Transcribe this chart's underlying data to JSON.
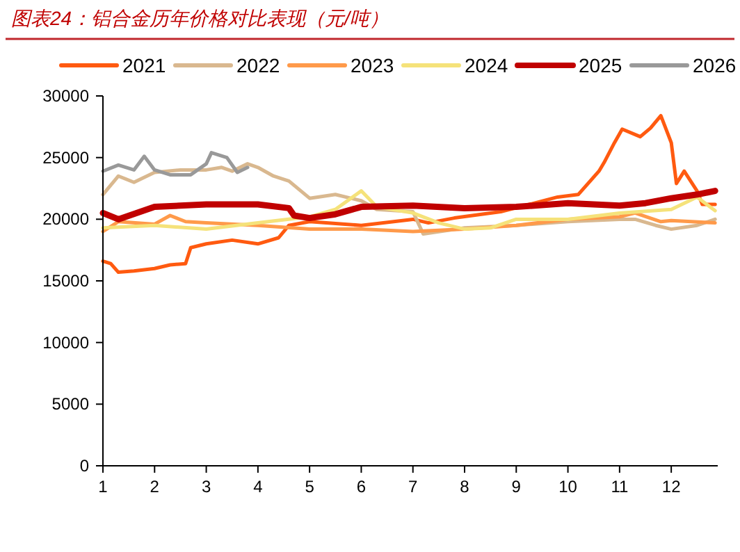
{
  "chart_data": {
    "type": "line",
    "title": "图表24：铝合金历年价格对比表现（元/吨）",
    "xlim": [
      1,
      12.9
    ],
    "xticks": [
      1,
      2,
      3,
      4,
      5,
      6,
      7,
      8,
      9,
      10,
      11,
      12
    ],
    "ylim": [
      0,
      30000
    ],
    "yticks": [
      0,
      5000,
      10000,
      15000,
      20000,
      25000,
      30000
    ],
    "grid": false,
    "legend": "top",
    "marker": "none",
    "line_style": "solid",
    "series": [
      {
        "name": "2021",
        "color": "#ff5a10",
        "x": [
          1,
          1.15,
          1.3,
          1.6,
          2,
          2.3,
          2.6,
          2.7,
          3,
          3.5,
          4,
          4.4,
          4.6,
          5,
          6,
          7,
          7.3,
          7.8,
          8.7,
          9.8,
          10.2,
          10.6,
          10.7,
          10.9,
          11.05,
          11.4,
          11.6,
          11.8,
          12,
          12.1,
          12.25,
          12.5,
          12.6,
          12.85
        ],
        "values": [
          16600,
          16400,
          15700,
          15800,
          16000,
          16300,
          16400,
          17700,
          18000,
          18300,
          18000,
          18500,
          19500,
          19800,
          19500,
          20000,
          19700,
          20100,
          20600,
          21800,
          22000,
          23900,
          24600,
          26200,
          27300,
          26700,
          27400,
          28400,
          26200,
          22900,
          23900,
          22300,
          21200,
          21200
        ]
      },
      {
        "name": "2022",
        "color": "#d9b88f",
        "x": [
          1,
          1.3,
          1.6,
          2,
          2.5,
          3,
          3.3,
          3.5,
          3.8,
          4,
          4.3,
          4.6,
          5,
          5.5,
          6,
          6.3,
          7,
          7.2,
          8,
          9,
          10,
          11,
          11.3,
          11.7,
          12,
          12.5,
          12.85
        ],
        "values": [
          22000,
          23500,
          23000,
          23800,
          24000,
          24000,
          24200,
          23900,
          24500,
          24200,
          23500,
          23100,
          21700,
          22000,
          21500,
          20800,
          20600,
          18800,
          19300,
          19500,
          19800,
          20000,
          20000,
          19500,
          19200,
          19500,
          20000
        ]
      },
      {
        "name": "2023",
        "color": "#ff9a4a",
        "x": [
          1,
          1.3,
          2,
          2.3,
          2.6,
          3,
          4,
          5,
          6,
          7,
          8,
          9,
          10,
          11,
          11.3,
          11.8,
          12,
          12.85
        ],
        "values": [
          19000,
          19800,
          19600,
          20300,
          19800,
          19700,
          19500,
          19200,
          19200,
          19000,
          19200,
          19500,
          20000,
          20200,
          20500,
          19800,
          19900,
          19700
        ]
      },
      {
        "name": "2024",
        "color": "#f5e27a",
        "x": [
          1,
          2,
          3,
          4,
          5,
          5.5,
          6,
          6.3,
          7,
          7.5,
          8,
          8.5,
          9,
          10,
          11,
          12,
          12.5,
          12.85
        ],
        "values": [
          19300,
          19500,
          19200,
          19700,
          20200,
          20800,
          22300,
          21000,
          20500,
          19700,
          19200,
          19300,
          20000,
          20000,
          20500,
          20800,
          21800,
          20700
        ]
      },
      {
        "name": "2025",
        "color": "#c00000",
        "x": [
          1,
          1.3,
          2,
          3,
          4,
          4.6,
          4.7,
          5,
          5.5,
          6,
          7,
          8,
          9,
          10,
          11,
          11.5,
          12,
          12.5,
          12.85
        ],
        "values": [
          20500,
          20000,
          21000,
          21200,
          21200,
          20900,
          20300,
          20100,
          20400,
          21000,
          21100,
          20900,
          21000,
          21300,
          21100,
          21300,
          21700,
          22000,
          22300
        ]
      },
      {
        "name": "2026",
        "color": "#999999",
        "x": [
          1,
          1.3,
          1.6,
          1.8,
          2,
          2.3,
          2.7,
          3,
          3.1,
          3.4,
          3.6,
          3.8
        ],
        "values": [
          23900,
          24400,
          24000,
          25100,
          24000,
          23600,
          23600,
          24500,
          25400,
          25000,
          23800,
          24200
        ]
      }
    ]
  }
}
